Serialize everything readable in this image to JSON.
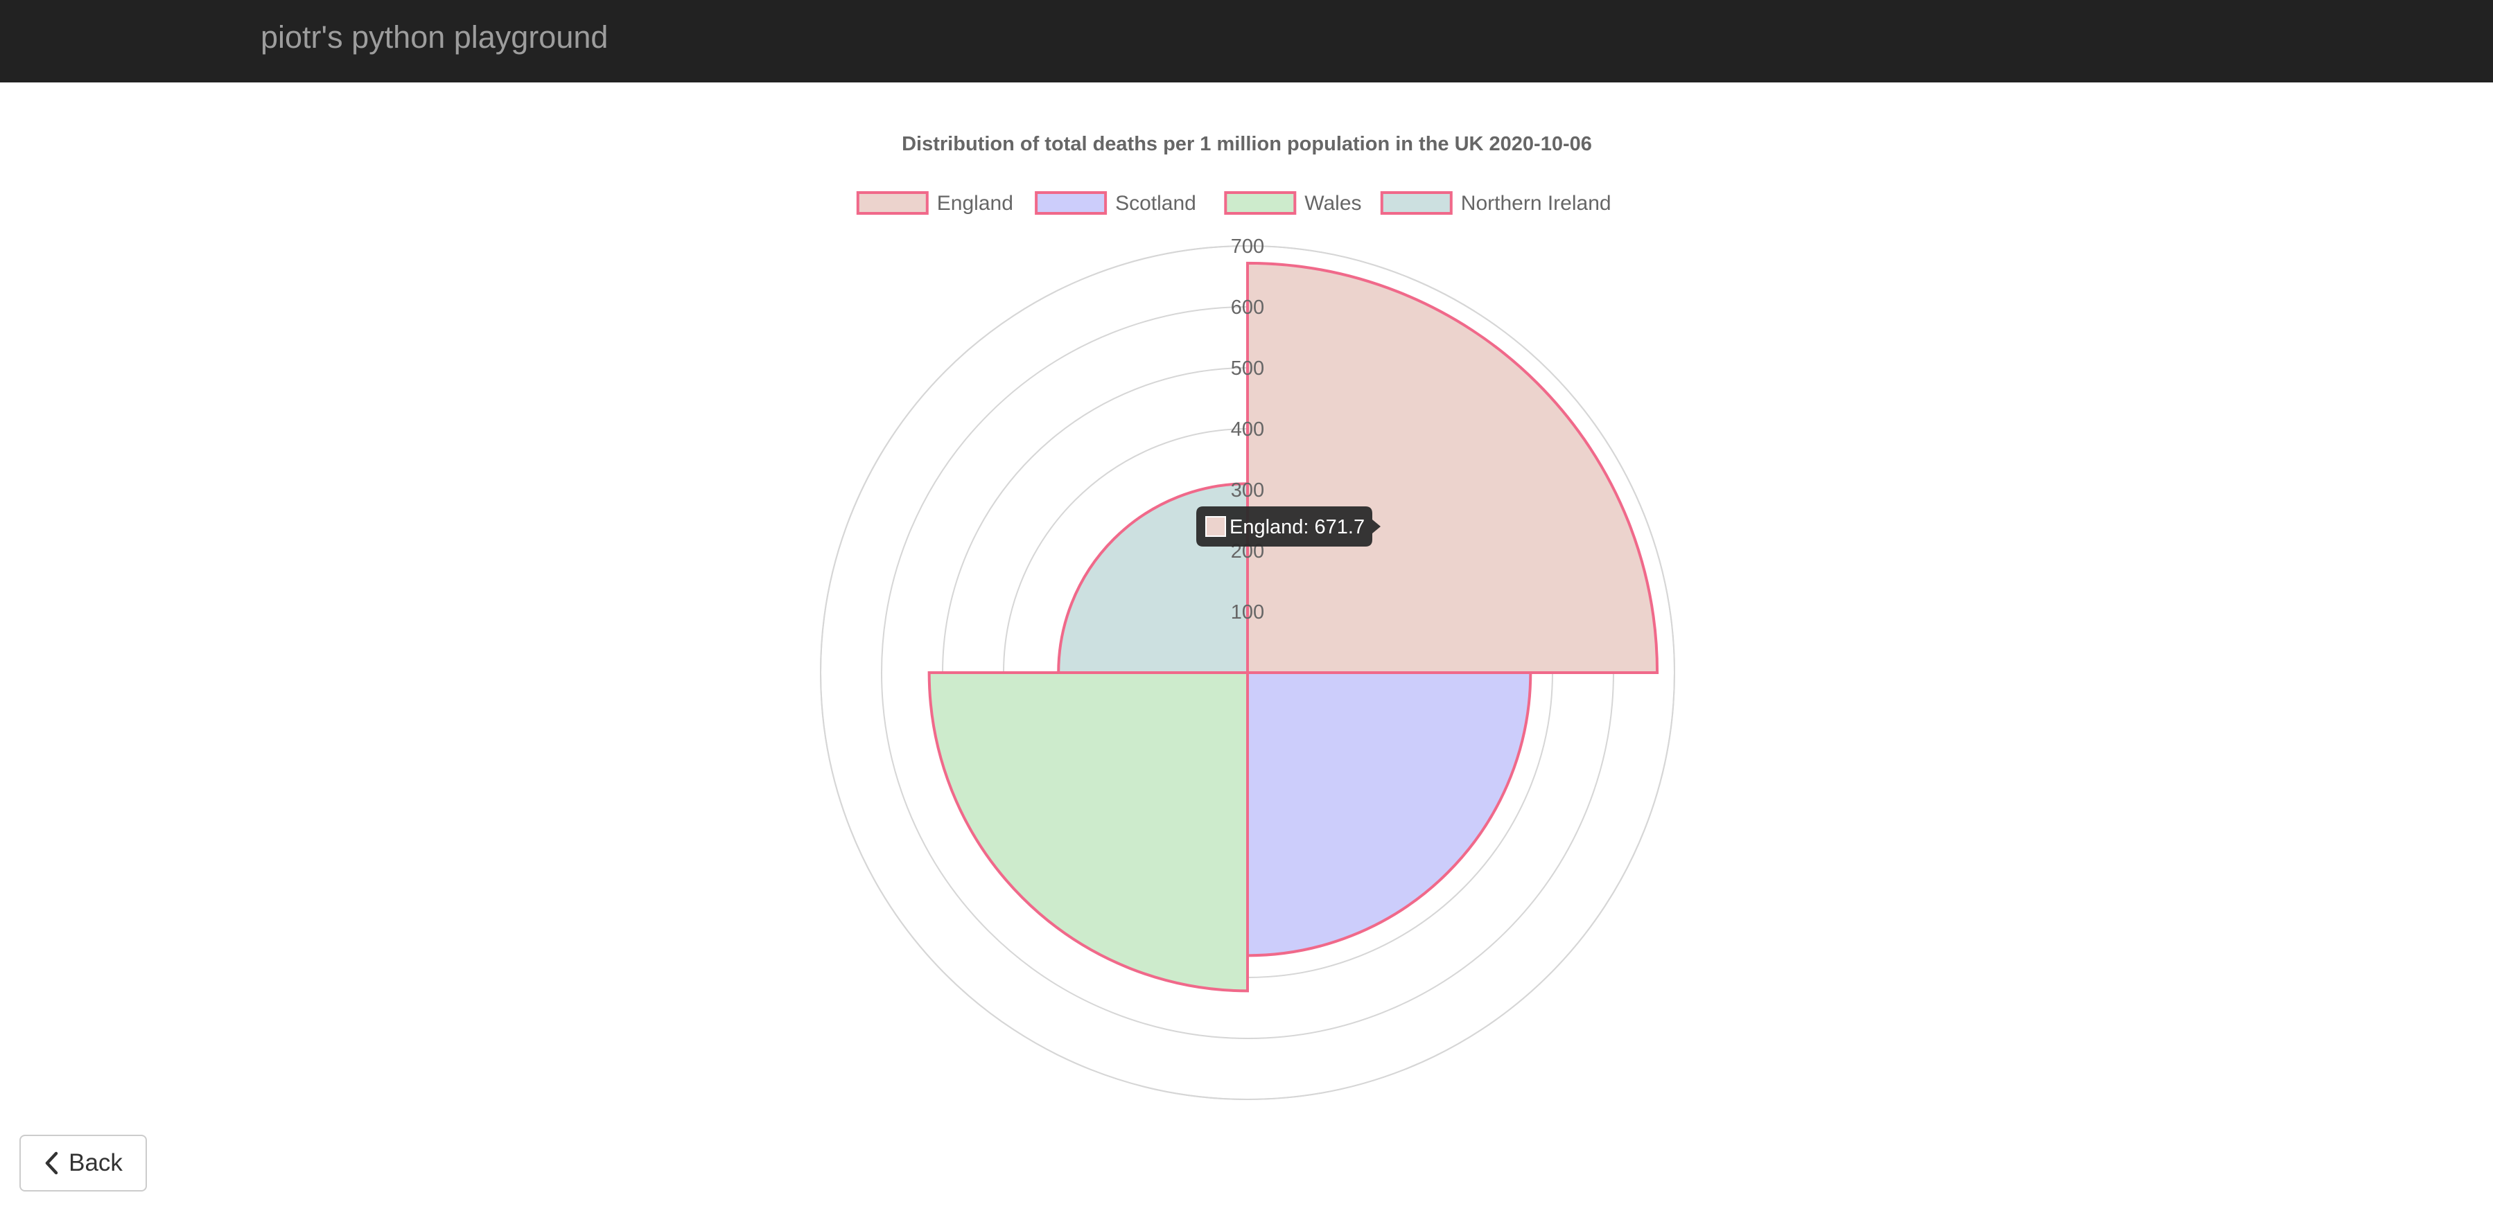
{
  "navbar": {
    "brand": "piotr's python playground"
  },
  "back_button": {
    "label": "Back",
    "icon": "chevron-left-icon"
  },
  "tooltip": {
    "text": "England: 671.7",
    "series_index": 0
  },
  "colors": {
    "navbar_bg": "#222222",
    "brand_text": "#9d9d9d",
    "border": "#f0698a",
    "grid": "#d6d6d6",
    "tick_text": "#666666",
    "tooltip_bg": "#2b2b2b"
  },
  "chart_data": {
    "type": "polarArea",
    "title": "Distribution of total deaths  per 1 million population in the UK 2020-10-06",
    "categories": [
      "England",
      "Scotland",
      "Wales",
      "Northern Ireland"
    ],
    "values": [
      671.7,
      464,
      522,
      310
    ],
    "fill_colors": [
      "#ecd3cd",
      "#cccdfb",
      "#cdebcc",
      "#cce0e0"
    ],
    "radial_ticks": [
      100,
      200,
      300,
      400,
      500,
      600,
      700
    ],
    "r_range": [
      0,
      700
    ],
    "legend_position": "top",
    "grid": true
  }
}
